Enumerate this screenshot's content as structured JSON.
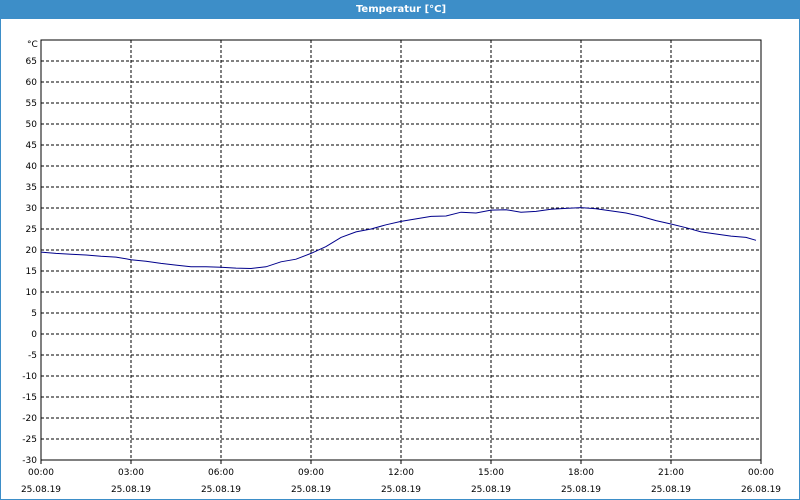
{
  "window": {
    "title": "Temperatur [°C]"
  },
  "chart_data": {
    "type": "line",
    "title": "Temperatur [°C]",
    "ylabel": "°C",
    "xlabel": "",
    "ylim": [
      -30,
      70
    ],
    "yticks": [
      -30,
      -25,
      -20,
      -15,
      -10,
      -5,
      0,
      5,
      10,
      15,
      20,
      25,
      30,
      35,
      40,
      45,
      50,
      55,
      60,
      65
    ],
    "xlim": [
      "2019-08-25T00:00",
      "2019-08-26T00:00"
    ],
    "xticks": [
      {
        "time": "00:00",
        "date": "25.08.19"
      },
      {
        "time": "03:00",
        "date": "25.08.19"
      },
      {
        "time": "06:00",
        "date": "25.08.19"
      },
      {
        "time": "09:00",
        "date": "25.08.19"
      },
      {
        "time": "12:00",
        "date": "25.08.19"
      },
      {
        "time": "15:00",
        "date": "25.08.19"
      },
      {
        "time": "18:00",
        "date": "25.08.19"
      },
      {
        "time": "21:00",
        "date": "25.08.19"
      },
      {
        "time": "00:00",
        "date": "26.08.19"
      }
    ],
    "grid": true,
    "grid_style": "dashed",
    "line_color": "#00008b",
    "series": [
      {
        "x": [
          "00:00",
          "00:30",
          "01:00",
          "01:30",
          "02:00",
          "02:30",
          "03:00",
          "03:30",
          "04:00",
          "04:30",
          "05:00",
          "05:30",
          "06:00",
          "06:30",
          "07:00",
          "07:30",
          "08:00",
          "08:30",
          "09:00",
          "09:30",
          "10:00",
          "10:30",
          "11:00",
          "11:30",
          "12:00",
          "12:30",
          "13:00",
          "13:30",
          "14:00",
          "14:30",
          "15:00",
          "15:30",
          "16:00",
          "16:30",
          "17:00",
          "17:30",
          "18:00",
          "18:30",
          "19:00",
          "19:30",
          "20:00",
          "20:30",
          "21:00",
          "21:30",
          "22:00",
          "22:30",
          "23:00",
          "23:30",
          "23:50"
        ],
        "values": [
          19.5,
          19.2,
          19.0,
          18.8,
          18.5,
          18.3,
          17.7,
          17.3,
          16.8,
          16.4,
          16.0,
          16.0,
          15.9,
          15.7,
          15.6,
          16.0,
          17.2,
          17.8,
          19.2,
          20.8,
          23.0,
          24.3,
          25.0,
          26.0,
          26.8,
          27.4,
          28.0,
          28.1,
          29.0,
          28.8,
          29.5,
          29.6,
          29.0,
          29.2,
          29.7,
          29.9,
          30.1,
          29.8,
          29.3,
          28.8,
          28.0,
          27.0,
          26.2,
          25.3,
          24.3,
          23.8,
          23.3,
          23.0,
          22.3
        ]
      }
    ]
  }
}
